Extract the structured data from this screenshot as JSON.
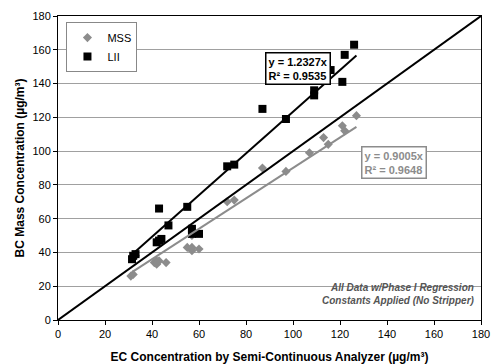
{
  "chart_data": {
    "type": "scatter",
    "x_label": "EC Concentration by Semi-Continuous Analyzer (µg/m³)",
    "y_label": "BC Mass Concentration (µg/m³)",
    "xlim": [
      0,
      180
    ],
    "ylim": [
      0,
      180
    ],
    "xticks": [
      0,
      20,
      40,
      60,
      80,
      100,
      120,
      140,
      160,
      180
    ],
    "yticks": [
      0,
      20,
      40,
      60,
      80,
      100,
      120,
      140,
      160,
      180
    ],
    "grid": true,
    "legend": "upper left",
    "series": [
      {
        "name": "MSS",
        "type": "scatter",
        "marker": "diamond",
        "color": "#8c8c8c",
        "x": [
          31,
          32,
          33,
          41,
          42,
          42,
          43,
          46,
          55,
          57,
          57,
          60,
          57,
          72,
          75,
          87,
          97,
          107,
          113,
          115,
          121,
          122,
          127
        ],
        "values": [
          26,
          27,
          38,
          34,
          35,
          33,
          35,
          34,
          43,
          41,
          43,
          42,
          50,
          70,
          71,
          90,
          88,
          99,
          108,
          104,
          115,
          112,
          121
        ]
      },
      {
        "name": "LII",
        "type": "scatter",
        "marker": "square",
        "color": "#000000",
        "x": [
          31.5,
          32,
          33,
          42,
          43,
          43,
          44,
          47,
          55,
          57,
          57,
          60,
          72,
          75,
          87,
          97,
          109,
          109,
          113,
          116,
          121,
          122,
          126
        ],
        "values": [
          36,
          38,
          39,
          46,
          66,
          47,
          48,
          56,
          67,
          51,
          54,
          51,
          91,
          92,
          125,
          119,
          133,
          136,
          148,
          148,
          141,
          157,
          163
        ]
      },
      {
        "type": "line",
        "line_style": "solid",
        "color": "#000000",
        "x": [
          31.5,
          127
        ],
        "values": [
          38.8,
          156.6
        ]
      },
      {
        "type": "line",
        "line_style": "solid",
        "color": "#8c8c8c",
        "x": [
          31.5,
          127
        ],
        "values": [
          28.4,
          114.4
        ]
      },
      {
        "type": "line",
        "line_style": "solid",
        "color": "#000000",
        "x": [
          0,
          180
        ],
        "values": [
          0,
          180
        ]
      }
    ],
    "annotations": [
      {
        "text": [
          "y = 1.2327x",
          "R² = 0.9535"
        ],
        "color": "#000000"
      },
      {
        "text": [
          "y = 0.9005x",
          "R² = 0.9648"
        ],
        "color": "#8c8c8c"
      },
      {
        "text": [
          "All Data w/Phase I Regression",
          "Constants Applied (No Stripper)"
        ],
        "color": "#555555"
      }
    ]
  }
}
